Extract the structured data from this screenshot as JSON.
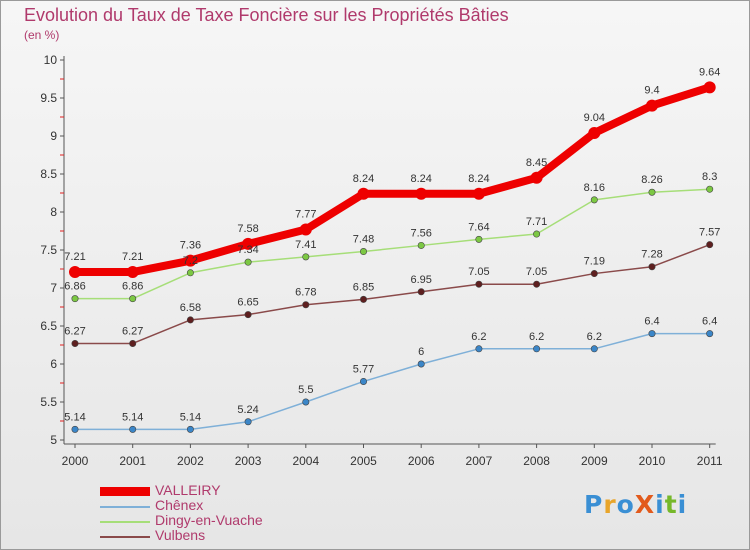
{
  "title": "Evolution du Taux de Taxe Foncière sur les Propriétés Bâties",
  "unit_label": "(en %)",
  "logo": {
    "text": "ProXiti",
    "colors": [
      "#3a8fd4",
      "#e8a52a",
      "#3a8fd4",
      "#e25a1c",
      "#3a8fd4",
      "#76b82a",
      "#3a8fd4"
    ]
  },
  "chart_data": {
    "type": "line",
    "title": "Evolution du Taux de Taxe Foncière sur les Propriétés Bâties",
    "ylabel": "(en %)",
    "xlabel": "",
    "x": [
      "2000",
      "2001",
      "2002",
      "2003",
      "2004",
      "2005",
      "2006",
      "2007",
      "2008",
      "2009",
      "2010",
      "2011"
    ],
    "ylim": [
      5,
      10
    ],
    "yticks": [
      "5",
      "5.5",
      "6",
      "6.5",
      "7",
      "7.5",
      "8",
      "8.5",
      "9",
      "9.5",
      "10"
    ],
    "grid": false,
    "legend_placement": "bottom-left",
    "series": [
      {
        "name": "VALLEIRY",
        "color": "#ee0000",
        "marker": "#ee0000",
        "width": 8,
        "values": [
          7.21,
          7.21,
          7.36,
          7.58,
          7.77,
          8.24,
          8.24,
          8.24,
          8.45,
          9.04,
          9.4,
          9.64
        ],
        "labels": [
          "7.21",
          "7.21",
          "7.36",
          "7.58",
          "7.77",
          "8.24",
          "8.24",
          "8.24",
          "8.45",
          "9.04",
          "9.4",
          "9.64"
        ]
      },
      {
        "name": "Chênex",
        "color": "#7fb0d8",
        "marker": "#3b86c8",
        "width": 1.5,
        "values": [
          5.14,
          5.14,
          5.14,
          5.24,
          5.5,
          5.77,
          6,
          6.2,
          6.2,
          6.2,
          6.4,
          6.4
        ],
        "labels": [
          "5.14",
          "5.14",
          "5.14",
          "5.24",
          "5.5",
          "5.77",
          "6",
          "6.2",
          "6.2",
          "6.2",
          "6.4",
          "6.4"
        ]
      },
      {
        "name": "Dingy-en-Vuache",
        "color": "#a6de78",
        "marker": "#7cc843",
        "width": 1.5,
        "values": [
          6.86,
          6.86,
          7.2,
          7.34,
          7.41,
          7.48,
          7.56,
          7.64,
          7.71,
          8.16,
          8.26,
          8.3
        ],
        "labels": [
          "6.86",
          "6.86",
          "7.2",
          "7.34",
          "7.41",
          "7.48",
          "7.56",
          "7.64",
          "7.71",
          "8.16",
          "8.26",
          "8.3"
        ]
      },
      {
        "name": "Vulbens",
        "color": "#8a4a4a",
        "marker": "#5e1f1f",
        "width": 1.5,
        "values": [
          6.27,
          6.27,
          6.58,
          6.65,
          6.78,
          6.85,
          6.95,
          7.05,
          7.05,
          7.19,
          7.28,
          7.57
        ],
        "labels": [
          "6.27",
          "6.27",
          "6.58",
          "6.65",
          "6.78",
          "6.85",
          "6.95",
          "7.05",
          "7.05",
          "7.19",
          "7.28",
          "7.57"
        ]
      }
    ]
  }
}
